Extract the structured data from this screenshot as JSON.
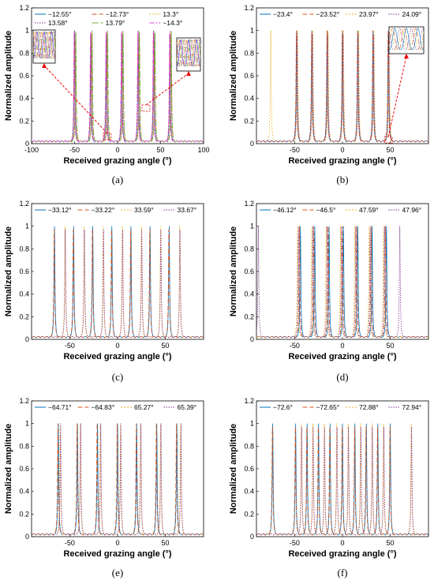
{
  "chart_data": [
    {
      "panel": "(a)",
      "type": "line",
      "xlabel": "Received grazing angle (°)",
      "ylabel": "Normalized amplitude",
      "xlim": [
        -100,
        100
      ],
      "ylim": [
        0,
        1.2
      ],
      "xticks": [
        "-100",
        "-50",
        "0",
        "50",
        "100"
      ],
      "yticks": [
        "0",
        "0.2",
        "0.4",
        "0.6",
        "0.8",
        "1",
        "1.2"
      ],
      "legend_position": "top",
      "insets": 2,
      "peak_positions": [
        -68,
        -48,
        -29,
        -11,
        9,
        27,
        48,
        67
      ],
      "series": [
        {
          "name": "−12.55°",
          "color": "#0072BD",
          "dash": "solid",
          "peaks": [
            -50,
            -31,
            -13,
            5,
            24,
            42,
            61
          ]
        },
        {
          "name": "−12.73°",
          "color": "#D95319",
          "dash": "6,3",
          "peaks": [
            -50.2,
            -31.2,
            -13.2,
            4.8,
            23.8,
            41.8,
            60.8
          ]
        },
        {
          "name": "13.3°",
          "color": "#EDB120",
          "dash": "2,2",
          "peaks": [
            -49,
            -30,
            -12,
            6,
            25,
            43,
            62
          ]
        },
        {
          "name": "13.58°",
          "color": "#7E2F8E",
          "dash": "1.5,1.5",
          "peaks": [
            -48.8,
            -29.8,
            -11.8,
            6.2,
            25.2,
            43.2,
            62.2
          ]
        },
        {
          "name": "13.79°",
          "color": "#77AC30",
          "dash": "8,3",
          "peaks": [
            -48.5,
            -29.5,
            -11.5,
            6.5,
            25.5,
            43.5,
            62.5
          ]
        },
        {
          "name": "−14.3°",
          "color": "#E040E0",
          "dash": "6,2,2,2",
          "peaks": [
            -50.5,
            -31.5,
            -13.5,
            4.5,
            23.5,
            41.5,
            60.5
          ]
        }
      ]
    },
    {
      "panel": "(b)",
      "type": "line",
      "xlabel": "Received grazing angle (°)",
      "ylabel": "Normalized amplitude",
      "xlim": [
        -90,
        90
      ],
      "ylim": [
        0,
        1.2
      ],
      "xticks": [
        "-50",
        "0",
        "50"
      ],
      "yticks": [
        "0",
        "0.2",
        "0.4",
        "0.6",
        "0.8",
        "1",
        "1.2"
      ],
      "legend_position": "top",
      "insets": 1,
      "series": [
        {
          "name": "−23.4°",
          "color": "#0072BD",
          "dash": "solid",
          "peaks": [
            -48,
            -32,
            -16,
            0,
            16,
            32,
            48
          ]
        },
        {
          "name": "−23.52°",
          "color": "#D95319",
          "dash": "6,3",
          "peaks": [
            -48.2,
            -32.2,
            -16.2,
            -0.2,
            15.8,
            31.8,
            47.8
          ]
        },
        {
          "name": "23.97°",
          "color": "#EDB120",
          "dash": "2,2",
          "peaks": [
            -75,
            -47,
            -31,
            -15,
            1,
            17,
            33,
            49
          ]
        },
        {
          "name": "24.09°",
          "color": "#7E2F8E",
          "dash": "1.5,1.5",
          "peaks": [
            -47.5,
            -31.5,
            -15.5,
            0.5,
            16.5,
            32.5,
            48.5
          ]
        }
      ]
    },
    {
      "panel": "(c)",
      "type": "line",
      "xlabel": "Received grazing angle (°)",
      "ylabel": "Normalized amplitude",
      "xlim": [
        -90,
        90
      ],
      "ylim": [
        0,
        1.2
      ],
      "xticks": [
        "-50",
        "0",
        "50"
      ],
      "yticks": [
        "0",
        "0.2",
        "0.4",
        "0.6",
        "0.8",
        "1",
        "1.2"
      ],
      "legend_position": "top",
      "series": [
        {
          "name": "−33.12°",
          "color": "#0072BD",
          "dash": "solid",
          "peaks": [
            -66,
            -46,
            -26,
            -6,
            14,
            34,
            54
          ]
        },
        {
          "name": "−33.22°",
          "color": "#D95319",
          "dash": "6,3",
          "peaks": [
            -66.3,
            -46.3,
            -26.3,
            -6.3,
            13.7,
            33.7,
            53.7
          ]
        },
        {
          "name": "33.59°",
          "color": "#EDB120",
          "dash": "2,2",
          "peaks": [
            -55,
            -35,
            -15,
            5,
            25,
            45,
            65
          ]
        },
        {
          "name": "33.67°",
          "color": "#7E2F8E",
          "dash": "1.5,1.5",
          "peaks": [
            -54.7,
            -34.7,
            -14.7,
            5.3,
            25.3,
            45.3,
            65.3
          ]
        }
      ]
    },
    {
      "panel": "(d)",
      "type": "line",
      "xlabel": "Received grazing angle (°)",
      "ylabel": "Normalized amplitude",
      "xlim": [
        -90,
        90
      ],
      "ylim": [
        0,
        1.2
      ],
      "xticks": [
        "-50",
        "0",
        "50"
      ],
      "yticks": [
        "0",
        "0.2",
        "0.4",
        "0.6",
        "0.8",
        "1",
        "1.2"
      ],
      "legend_position": "top",
      "series": [
        {
          "name": "−46.12°",
          "color": "#0072BD",
          "dash": "solid",
          "peaks": [
            -44,
            -29,
            -14,
            1,
            16,
            31,
            46
          ]
        },
        {
          "name": "−46.5°",
          "color": "#D95319",
          "dash": "6,3",
          "peaks": [
            -45,
            -30,
            -15,
            0,
            15,
            30,
            45
          ]
        },
        {
          "name": "47.59°",
          "color": "#EDB120",
          "dash": "2,2",
          "peaks": [
            -47,
            -32,
            -17,
            -2,
            13,
            28,
            43
          ]
        },
        {
          "name": "47.96°",
          "color": "#7E2F8E",
          "dash": "1.5,1.5",
          "peaks": [
            -88,
            -46,
            -31,
            -16,
            -1,
            14,
            29,
            44,
            60
          ]
        }
      ]
    },
    {
      "panel": "(e)",
      "type": "line",
      "xlabel": "Received grazing angle (°)",
      "ylabel": "Normalized amplitude",
      "xlim": [
        -90,
        90
      ],
      "ylim": [
        0,
        1.2
      ],
      "xticks": [
        "-50",
        "0",
        "50"
      ],
      "yticks": [
        "0",
        "0.2",
        "0.4",
        "0.6",
        "0.8",
        "1",
        "1.2"
      ],
      "legend_position": "top",
      "series": [
        {
          "name": "−64.71°",
          "color": "#0072BD",
          "dash": "solid",
          "peaks": [
            -62,
            -42,
            -21,
            0,
            20,
            41,
            62
          ]
        },
        {
          "name": "−64.83°",
          "color": "#D95319",
          "dash": "6,3",
          "peaks": [
            -62.4,
            -42.4,
            -21.4,
            -0.4,
            19.6,
            40.6,
            61.6
          ]
        },
        {
          "name": "65.27°",
          "color": "#EDB120",
          "dash": "2,2",
          "peaks": [
            -60,
            -39,
            -18,
            3,
            24,
            45,
            66
          ]
        },
        {
          "name": "65.39°",
          "color": "#7E2F8E",
          "dash": "1.5,1.5",
          "peaks": [
            -59.6,
            -38.6,
            -17.6,
            3.4,
            24.4,
            45.4,
            66.4
          ]
        }
      ]
    },
    {
      "panel": "(f)",
      "type": "line",
      "xlabel": "Received grazing angle (°)",
      "ylabel": "Normalized amplitude",
      "xlim": [
        -90,
        90
      ],
      "ylim": [
        0,
        1.2
      ],
      "xticks": [
        "-50",
        "0",
        "50"
      ],
      "yticks": [
        "0",
        "0.2",
        "0.4",
        "0.6",
        "0.8",
        "1",
        "1.2"
      ],
      "legend_position": "top",
      "series": [
        {
          "name": "−72.6°",
          "color": "#0072BD",
          "dash": "solid",
          "peaks": [
            -73,
            -49,
            -37,
            -25,
            -13,
            0,
            13,
            25,
            37,
            50
          ]
        },
        {
          "name": "−72.65°",
          "color": "#D95319",
          "dash": "6,3",
          "peaks": [
            -73.3,
            -49.3,
            -37.3,
            -25.3,
            -13.3,
            -0.3,
            12.7,
            24.7,
            36.7,
            49.7
          ]
        },
        {
          "name": "72.88°",
          "color": "#EDB120",
          "dash": "2,2",
          "peaks": [
            -43,
            -31,
            -19,
            -6,
            6,
            19,
            31,
            43,
            72
          ]
        },
        {
          "name": "72.94°",
          "color": "#7E2F8E",
          "dash": "1.5,1.5",
          "peaks": [
            -42.7,
            -30.7,
            -18.7,
            -5.7,
            6.3,
            19.3,
            31.3,
            43.3,
            72.3
          ]
        }
      ]
    }
  ]
}
